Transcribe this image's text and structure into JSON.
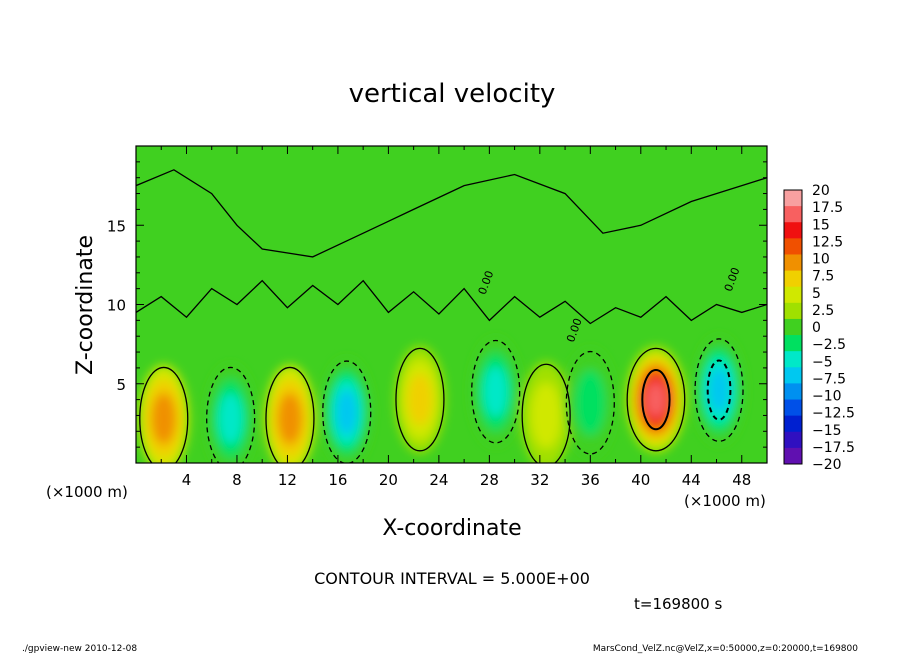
{
  "chart_data": {
    "type": "heatmap",
    "title": "vertical velocity",
    "xlabel": "X-coordinate",
    "ylabel": "Z-coordinate",
    "x_unit_label": "(×1000 m)",
    "y_unit_label": "(×1000 m)",
    "xlim": [
      0,
      50
    ],
    "ylim": [
      0,
      20
    ],
    "x_ticks": [
      4,
      8,
      12,
      16,
      20,
      24,
      28,
      32,
      36,
      40,
      44,
      48
    ],
    "y_ticks": [
      5,
      10,
      15
    ],
    "contour_interval_text": "CONTOUR INTERVAL = 5.000E+00",
    "contour_labels": [
      "0.00",
      "0.00",
      "0.00"
    ],
    "time_text": "t=169800 s",
    "colorbar": {
      "levels": [
        20,
        17.5,
        15,
        12.5,
        10,
        7.5,
        5,
        2.5,
        0,
        -2.5,
        -5,
        -7.5,
        -10,
        -12.5,
        -15,
        -17.5,
        -20
      ],
      "labels": [
        "20",
        "17.5",
        "15",
        "12.5",
        "10",
        "7.5",
        "5",
        "2.5",
        "0",
        "−2.5",
        "−5",
        "−7.5",
        "−10",
        "−12.5",
        "−15",
        "−17.5",
        "−20"
      ],
      "colors": [
        "#f8a0a0",
        "#f86060",
        "#f01010",
        "#f05000",
        "#f09000",
        "#f0d000",
        "#d0e800",
        "#a0e000",
        "#40d020",
        "#00e060",
        "#00e8c8",
        "#00c8f0",
        "#0090f0",
        "#0050e8",
        "#0020d0",
        "#3010c0",
        "#6010b0"
      ]
    },
    "features": [
      {
        "x": 2.2,
        "z": 2.8,
        "value": 7.5
      },
      {
        "x": 7.5,
        "z": 2.8,
        "value": -7.5
      },
      {
        "x": 12.2,
        "z": 2.8,
        "value": 7.5
      },
      {
        "x": 16.7,
        "z": 3.2,
        "value": -9
      },
      {
        "x": 22.5,
        "z": 4.0,
        "value": 6
      },
      {
        "x": 28.5,
        "z": 4.5,
        "value": -6
      },
      {
        "x": 32.5,
        "z": 3.0,
        "value": 3
      },
      {
        "x": 36.0,
        "z": 3.8,
        "value": -5
      },
      {
        "x": 41.2,
        "z": 4.0,
        "value": 17
      },
      {
        "x": 46.2,
        "z": 4.6,
        "value": -10
      }
    ]
  },
  "footer": {
    "left": "./gpview-new   2010-12-08",
    "right": "MarsCond_VelZ.nc@VelZ,x=0:50000,z=0:20000,t=169800"
  }
}
